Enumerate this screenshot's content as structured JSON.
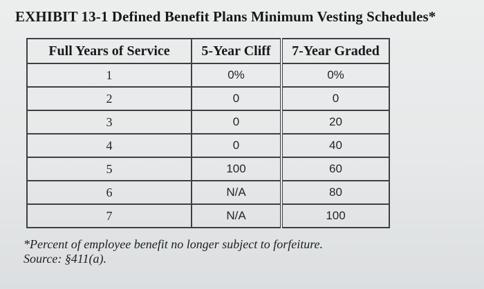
{
  "title": "EXHIBIT 13-1 Defined Benefit Plans Minimum Vesting Schedules*",
  "table": {
    "headers": [
      "Full Years of Service",
      "5-Year Cliff",
      "7-Year Graded"
    ],
    "rows": [
      [
        "1",
        "0%",
        "0%"
      ],
      [
        "2",
        "0",
        "0"
      ],
      [
        "3",
        "0",
        "20"
      ],
      [
        "4",
        "0",
        "40"
      ],
      [
        "5",
        "100",
        "60"
      ],
      [
        "6",
        "N/A",
        "80"
      ],
      [
        "7",
        "N/A",
        "100"
      ]
    ]
  },
  "footnote": {
    "line1": "*Percent of employee benefit no longer subject to forfeiture.",
    "line2": "Source: §411(a)."
  }
}
